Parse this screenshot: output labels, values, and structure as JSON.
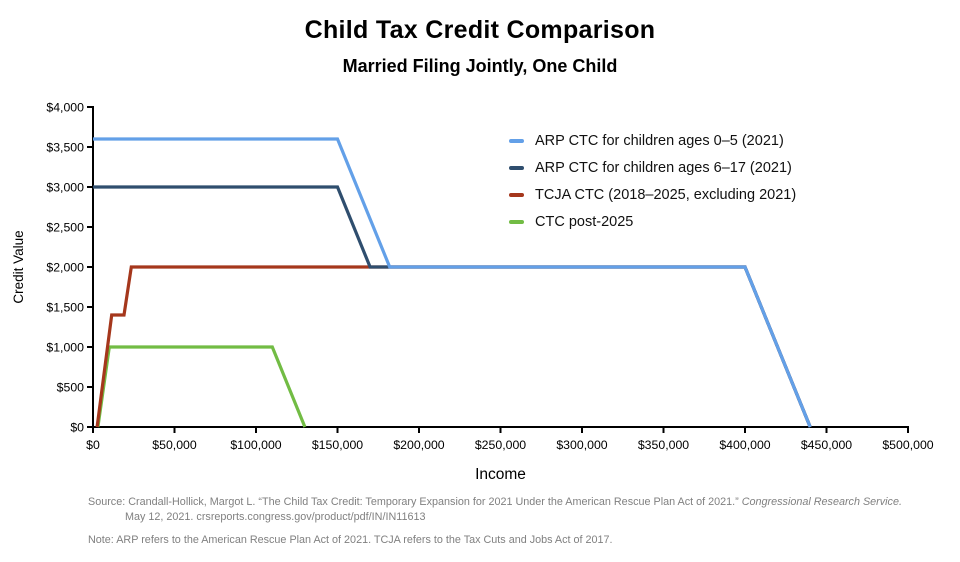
{
  "chart_data": {
    "type": "line",
    "title": "Child Tax Credit Comparison",
    "subtitle": "Married Filing Jointly, One Child",
    "xlabel": "Income",
    "ylabel": "Credit Value",
    "xlim": [
      0,
      500000
    ],
    "ylim": [
      0,
      4000
    ],
    "grid": false,
    "legend_position": "upper-right-inside",
    "x_ticks": [
      {
        "value": 0,
        "label": "$0"
      },
      {
        "value": 50000,
        "label": "$50,000"
      },
      {
        "value": 100000,
        "label": "$100,000"
      },
      {
        "value": 150000,
        "label": "$150,000"
      },
      {
        "value": 200000,
        "label": "$200,000"
      },
      {
        "value": 250000,
        "label": "$250,000"
      },
      {
        "value": 300000,
        "label": "$300,000"
      },
      {
        "value": 350000,
        "label": "$350,000"
      },
      {
        "value": 400000,
        "label": "$400,000"
      },
      {
        "value": 450000,
        "label": "$450,000"
      },
      {
        "value": 500000,
        "label": "$500,000"
      }
    ],
    "y_ticks": [
      {
        "value": 0,
        "label": "$0"
      },
      {
        "value": 500,
        "label": "$500"
      },
      {
        "value": 1000,
        "label": "$1,000"
      },
      {
        "value": 1500,
        "label": "$1,500"
      },
      {
        "value": 2000,
        "label": "$2,000"
      },
      {
        "value": 2500,
        "label": "$2,500"
      },
      {
        "value": 3000,
        "label": "$3,000"
      },
      {
        "value": 3500,
        "label": "$3,500"
      },
      {
        "value": 4000,
        "label": "$4,000"
      }
    ],
    "series": [
      {
        "name": "ARP CTC for children ages 0–5 (2021)",
        "color": "#63A0E8",
        "points": [
          [
            0,
            3600
          ],
          [
            150000,
            3600
          ],
          [
            182000,
            2000
          ],
          [
            400000,
            2000
          ],
          [
            440000,
            0
          ]
        ]
      },
      {
        "name": "ARP CTC for children ages 6–17 (2021)",
        "color": "#2F4E6E",
        "points": [
          [
            0,
            3000
          ],
          [
            150000,
            3000
          ],
          [
            170000,
            2000
          ],
          [
            400000,
            2000
          ],
          [
            440000,
            0
          ]
        ]
      },
      {
        "name": "TCJA CTC (2018–2025, excluding 2021)",
        "color": "#A5371C",
        "points": [
          [
            2500,
            0
          ],
          [
            11500,
            1400
          ],
          [
            19000,
            1400
          ],
          [
            23500,
            2000
          ],
          [
            400000,
            2000
          ],
          [
            440000,
            0
          ]
        ]
      },
      {
        "name": "CTC post-2025",
        "color": "#72BC44",
        "points": [
          [
            3000,
            0
          ],
          [
            10000,
            1000
          ],
          [
            110000,
            1000
          ],
          [
            130000,
            0
          ]
        ]
      }
    ]
  },
  "footer": {
    "source_line1_prefix": "Source: Crandall-Hollick, Margot L. “The Child Tax Credit: Temporary Expansion for 2021 Under the American Rescue Plan Act of 2021.” ",
    "source_line1_italic": "Congressional Research Service.",
    "source_line2": "May 12, 2021. crsreports.congress.gov/product/pdf/IN/IN11613",
    "note": "Note: ARP refers to the American Rescue Plan Act of 2021. TCJA refers to the Tax Cuts and Jobs Act of 2017."
  }
}
